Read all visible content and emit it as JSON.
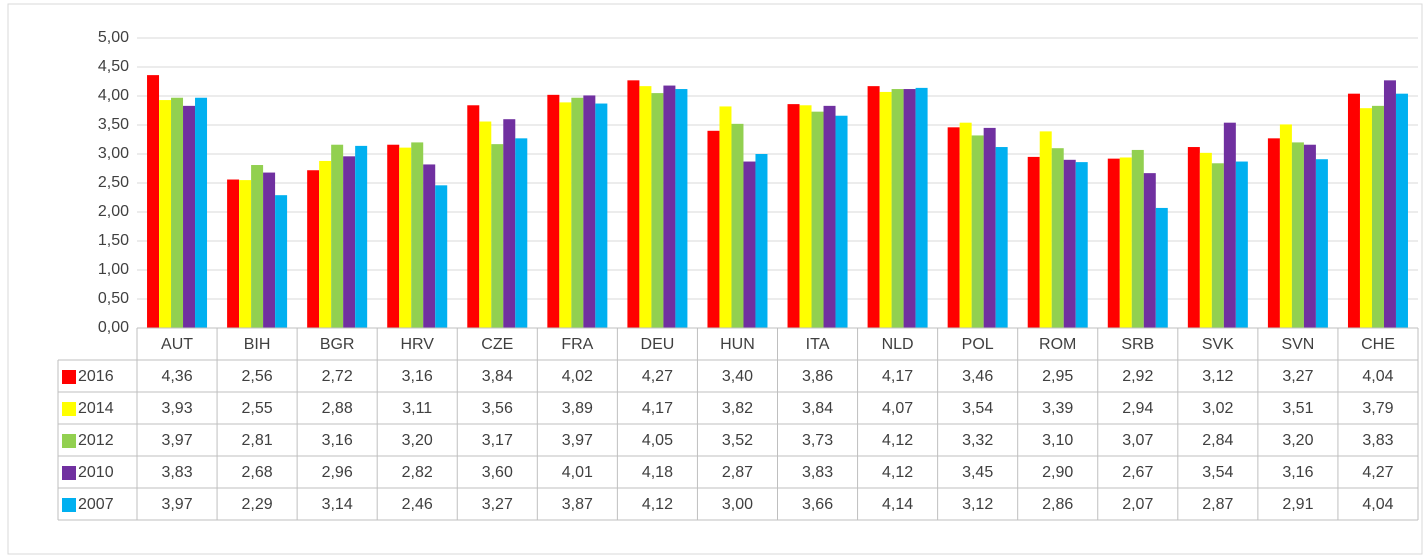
{
  "chart_data": {
    "type": "bar",
    "categories": [
      "AUT",
      "BIH",
      "BGR",
      "HRV",
      "CZE",
      "FRA",
      "DEU",
      "HUN",
      "ITA",
      "NLD",
      "POL",
      "ROM",
      "SRB",
      "SVK",
      "SVN",
      "CHE"
    ],
    "series": [
      {
        "name": "2016",
        "color": "#ff0000",
        "values": [
          4.36,
          2.56,
          2.72,
          3.16,
          3.84,
          4.02,
          4.27,
          3.4,
          3.86,
          4.17,
          3.46,
          2.95,
          2.92,
          3.12,
          3.27,
          4.04
        ],
        "value_labels": [
          "4,36",
          "2,56",
          "2,72",
          "3,16",
          "3,84",
          "4,02",
          "4,27",
          "3,40",
          "3,86",
          "4,17",
          "3,46",
          "2,95",
          "2,92",
          "3,12",
          "3,27",
          "4,04"
        ]
      },
      {
        "name": "2014",
        "color": "#ffff00",
        "values": [
          3.93,
          2.55,
          2.88,
          3.11,
          3.56,
          3.89,
          4.17,
          3.82,
          3.84,
          4.07,
          3.54,
          3.39,
          2.94,
          3.02,
          3.51,
          3.79
        ],
        "value_labels": [
          "3,93",
          "2,55",
          "2,88",
          "3,11",
          "3,56",
          "3,89",
          "4,17",
          "3,82",
          "3,84",
          "4,07",
          "3,54",
          "3,39",
          "2,94",
          "3,02",
          "3,51",
          "3,79"
        ]
      },
      {
        "name": "2012",
        "color": "#92d050",
        "values": [
          3.97,
          2.81,
          3.16,
          3.2,
          3.17,
          3.97,
          4.05,
          3.52,
          3.73,
          4.12,
          3.32,
          3.1,
          3.07,
          2.84,
          3.2,
          3.83
        ],
        "value_labels": [
          "3,97",
          "2,81",
          "3,16",
          "3,20",
          "3,17",
          "3,97",
          "4,05",
          "3,52",
          "3,73",
          "4,12",
          "3,32",
          "3,10",
          "3,07",
          "2,84",
          "3,20",
          "3,83"
        ]
      },
      {
        "name": "2010",
        "color": "#7030a0",
        "values": [
          3.83,
          2.68,
          2.96,
          2.82,
          3.6,
          4.01,
          4.18,
          2.87,
          3.83,
          4.12,
          3.45,
          2.9,
          2.67,
          3.54,
          3.16,
          4.27
        ],
        "value_labels": [
          "3,83",
          "2,68",
          "2,96",
          "2,82",
          "3,60",
          "4,01",
          "4,18",
          "2,87",
          "3,83",
          "4,12",
          "3,45",
          "2,90",
          "2,67",
          "3,54",
          "3,16",
          "4,27"
        ]
      },
      {
        "name": "2007",
        "color": "#00b0f0",
        "values": [
          3.97,
          2.29,
          3.14,
          2.46,
          3.27,
          3.87,
          4.12,
          3.0,
          3.66,
          4.14,
          3.12,
          2.86,
          2.07,
          2.87,
          2.91,
          4.04
        ],
        "value_labels": [
          "3,97",
          "2,29",
          "3,14",
          "2,46",
          "3,27",
          "3,87",
          "4,12",
          "3,00",
          "3,66",
          "4,14",
          "3,12",
          "2,86",
          "2,07",
          "2,87",
          "2,91",
          "4,04"
        ]
      }
    ],
    "ylim": [
      0,
      5
    ],
    "yticks": [
      {
        "value": 0,
        "label": "0,00"
      },
      {
        "value": 0.5,
        "label": "0,50"
      },
      {
        "value": 1,
        "label": "1,00"
      },
      {
        "value": 1.5,
        "label": "1,50"
      },
      {
        "value": 2,
        "label": "2,00"
      },
      {
        "value": 2.5,
        "label": "2,50"
      },
      {
        "value": 3,
        "label": "3,00"
      },
      {
        "value": 3.5,
        "label": "3,50"
      },
      {
        "value": 4,
        "label": "4,00"
      },
      {
        "value": 4.5,
        "label": "4,50"
      },
      {
        "value": 5,
        "label": "5,00"
      }
    ],
    "grid": true
  }
}
